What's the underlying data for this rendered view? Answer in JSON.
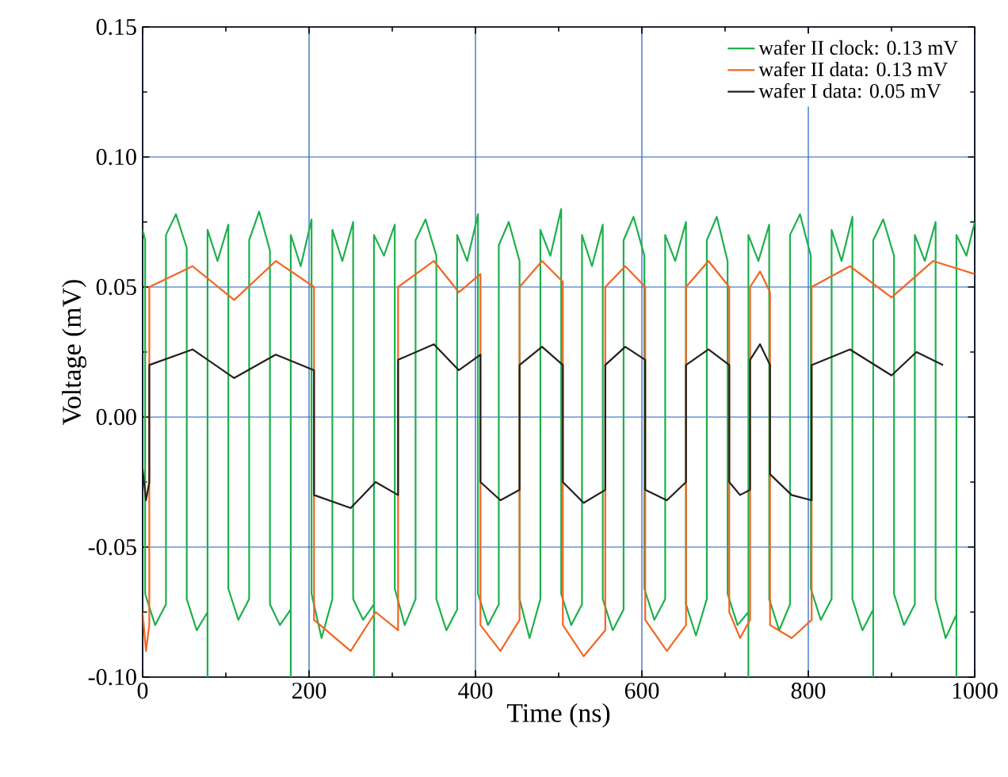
{
  "chart_data": {
    "type": "line",
    "xlabel": "Time (ns)",
    "ylabel": "Voltage (mV)",
    "xlim": [
      0,
      1000
    ],
    "xticks": [
      0,
      200,
      400,
      600,
      800,
      1000
    ],
    "ylim": [
      -0.1,
      0.15
    ],
    "yticks": [
      {
        "value": -0.1,
        "label": "-0.10"
      },
      {
        "value": -0.05,
        "label": "-0.05"
      },
      {
        "value": 0,
        "label": "0.00"
      },
      {
        "value": 0.05,
        "label": "0.05"
      },
      {
        "value": 0.1,
        "label": "0.10"
      },
      {
        "value": 0.15,
        "label": "0.15"
      }
    ],
    "grid": true,
    "legend": "top right",
    "marker": "none",
    "line_style": "solid",
    "series": [
      {
        "name": "wafer II clock: 0.13 mV",
        "color": "#1db04b",
        "x": [
          0,
          3,
          3,
          15,
          28,
          28,
          40,
          53,
          53,
          65,
          78,
          78,
          78,
          90,
          103,
          103,
          115,
          128,
          128,
          140,
          153,
          153,
          165,
          178,
          178,
          178,
          190,
          203,
          203,
          215,
          228,
          228,
          240,
          253,
          253,
          265,
          278,
          278,
          278,
          290,
          303,
          303,
          315,
          328,
          328,
          340,
          353,
          353,
          365,
          378,
          378,
          390,
          403,
          403,
          415,
          428,
          428,
          440,
          453,
          453,
          465,
          478,
          478,
          490,
          503,
          503,
          515,
          528,
          528,
          540,
          553,
          553,
          565,
          578,
          578,
          590,
          603,
          603,
          615,
          628,
          628,
          640,
          653,
          653,
          665,
          678,
          678,
          690,
          703,
          703,
          715,
          728,
          728,
          728,
          740,
          753,
          753,
          765,
          778,
          778,
          790,
          803,
          803,
          815,
          828,
          828,
          840,
          853,
          853,
          865,
          878,
          878,
          878,
          890,
          903,
          903,
          915,
          928,
          928,
          940,
          953,
          953,
          965,
          978,
          978,
          978,
          990,
          1000
        ],
        "values": [
          0.072,
          0.068,
          -0.068,
          -0.08,
          -0.072,
          0.07,
          0.078,
          0.065,
          -0.07,
          -0.082,
          -0.075,
          -0.1,
          0.072,
          0.06,
          0.074,
          -0.066,
          -0.078,
          -0.07,
          0.068,
          0.079,
          0.064,
          -0.072,
          -0.08,
          -0.074,
          -0.1,
          0.07,
          0.058,
          0.076,
          -0.068,
          -0.085,
          -0.07,
          0.072,
          0.06,
          0.075,
          -0.07,
          -0.078,
          -0.072,
          -0.1,
          0.07,
          0.062,
          0.074,
          -0.066,
          -0.08,
          -0.07,
          0.068,
          0.076,
          0.062,
          -0.07,
          -0.082,
          -0.074,
          0.07,
          0.06,
          0.078,
          -0.068,
          -0.08,
          -0.072,
          0.066,
          0.075,
          0.06,
          -0.07,
          -0.085,
          -0.07,
          0.072,
          0.062,
          0.08,
          -0.068,
          -0.08,
          -0.072,
          0.07,
          0.058,
          0.074,
          -0.07,
          -0.082,
          -0.074,
          0.068,
          0.077,
          0.062,
          -0.066,
          -0.078,
          -0.07,
          0.07,
          0.06,
          0.075,
          -0.072,
          -0.084,
          -0.07,
          0.068,
          0.077,
          0.06,
          -0.068,
          -0.08,
          -0.075,
          -0.1,
          0.07,
          0.06,
          0.074,
          -0.07,
          -0.082,
          -0.072,
          0.07,
          0.078,
          0.062,
          -0.066,
          -0.078,
          -0.07,
          0.072,
          0.06,
          0.077,
          -0.07,
          -0.082,
          -0.074,
          -0.1,
          0.068,
          0.076,
          0.062,
          -0.068,
          -0.08,
          -0.072,
          0.07,
          0.06,
          0.075,
          -0.07,
          -0.085,
          -0.076,
          -0.1,
          0.07,
          0.062,
          0.075
        ]
      },
      {
        "name": "wafer II data: 0.13 mV",
        "color": "#f26522",
        "x": [
          0,
          4,
          8,
          8,
          60,
          110,
          160,
          206,
          206,
          250,
          280,
          307,
          307,
          350,
          380,
          406,
          406,
          430,
          453,
          453,
          480,
          505,
          505,
          530,
          556,
          556,
          580,
          604,
          604,
          630,
          653,
          653,
          680,
          705,
          705,
          718,
          730,
          730,
          742,
          754,
          754,
          780,
          804,
          804,
          850,
          900,
          950,
          1000
        ],
        "values": [
          -0.075,
          -0.09,
          -0.08,
          0.05,
          0.058,
          0.045,
          0.06,
          0.05,
          -0.078,
          -0.09,
          -0.075,
          -0.082,
          0.05,
          0.06,
          0.048,
          0.055,
          -0.08,
          -0.09,
          -0.078,
          0.05,
          0.06,
          0.052,
          -0.08,
          -0.092,
          -0.082,
          0.05,
          0.058,
          0.05,
          -0.078,
          -0.09,
          -0.08,
          0.05,
          0.06,
          0.05,
          -0.075,
          -0.085,
          -0.078,
          0.05,
          0.056,
          0.048,
          -0.08,
          -0.085,
          -0.078,
          0.05,
          0.058,
          0.046,
          0.06,
          0.055
        ]
      },
      {
        "name": "wafer I data: 0.05 mV",
        "color": "#231f20",
        "x": [
          0,
          4,
          8,
          8,
          60,
          110,
          160,
          206,
          206,
          250,
          280,
          307,
          307,
          350,
          380,
          406,
          406,
          430,
          453,
          453,
          480,
          505,
          505,
          530,
          556,
          556,
          580,
          604,
          604,
          630,
          653,
          653,
          680,
          705,
          705,
          718,
          730,
          730,
          742,
          754,
          754,
          780,
          804,
          804,
          850,
          900,
          930,
          962
        ],
        "values": [
          -0.02,
          -0.032,
          -0.025,
          0.02,
          0.026,
          0.015,
          0.024,
          0.018,
          -0.03,
          -0.035,
          -0.025,
          -0.03,
          0.022,
          0.028,
          0.018,
          0.024,
          -0.025,
          -0.032,
          -0.028,
          0.02,
          0.027,
          0.02,
          -0.025,
          -0.033,
          -0.028,
          0.02,
          0.027,
          0.022,
          -0.028,
          -0.032,
          -0.025,
          0.02,
          0.026,
          0.02,
          -0.025,
          -0.03,
          -0.028,
          0.022,
          0.028,
          0.02,
          -0.022,
          -0.03,
          -0.032,
          0.02,
          0.026,
          0.016,
          0.025,
          0.02
        ]
      }
    ]
  }
}
